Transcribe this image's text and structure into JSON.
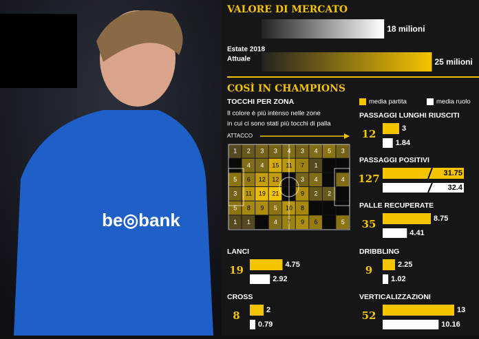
{
  "market": {
    "title": "VALORE DI MERCATO",
    "items": [
      {
        "label": "Estate 2018",
        "value": 18,
        "value_label": "18 milioni"
      },
      {
        "label": "Attuale",
        "value": 25,
        "value_label": "25 milioni"
      }
    ]
  },
  "champions": {
    "title": "COSÌ IN CHAMPIONS",
    "legend": [
      "media partita",
      "media ruolo"
    ],
    "touches": {
      "title": "TOCCHI PER ZONA",
      "description": [
        "Il colore è più intenso nelle zone",
        "in cui ci sono stati più tocchi di palla"
      ],
      "direction": "ATTACCO",
      "grid": [
        [
          1,
          2,
          3,
          3,
          4,
          3,
          4,
          5,
          3
        ],
        [
          null,
          4,
          4,
          15,
          11,
          7,
          1,
          null,
          null
        ],
        [
          5,
          6,
          12,
          12,
          null,
          3,
          4,
          null,
          4
        ],
        [
          3,
          11,
          19,
          21,
          null,
          9,
          2,
          2,
          null
        ],
        [
          5,
          8,
          9,
          5,
          10,
          8,
          null,
          null,
          null
        ],
        [
          1,
          1,
          null,
          4,
          7,
          9,
          6,
          null,
          5
        ]
      ]
    },
    "stats": [
      {
        "title": "LANCI",
        "score": 19,
        "media_partita": 4.75,
        "media_ruolo": 2.92
      },
      {
        "title": "CROSS",
        "score": 8,
        "media_partita": 2,
        "media_ruolo": 0.79
      },
      {
        "title": "PASSAGGI LUNGHI RIUSCITI",
        "score": 12,
        "media_partita": 3,
        "media_ruolo": 1.84
      },
      {
        "title": "PASSAGGI POSITIVI",
        "score": 127,
        "media_partita": 31.75,
        "media_ruolo": 32.4
      },
      {
        "title": "PALLE RECUPERATE",
        "score": 35,
        "media_partita": 8.75,
        "media_ruolo": 4.41
      },
      {
        "title": "DRIBBLING",
        "score": 9,
        "media_partita": 2.25,
        "media_ruolo": 1.02
      },
      {
        "title": "VERTICALIZZAZIONI",
        "score": 52,
        "media_partita": 13,
        "media_ruolo": 10.16
      }
    ]
  }
}
